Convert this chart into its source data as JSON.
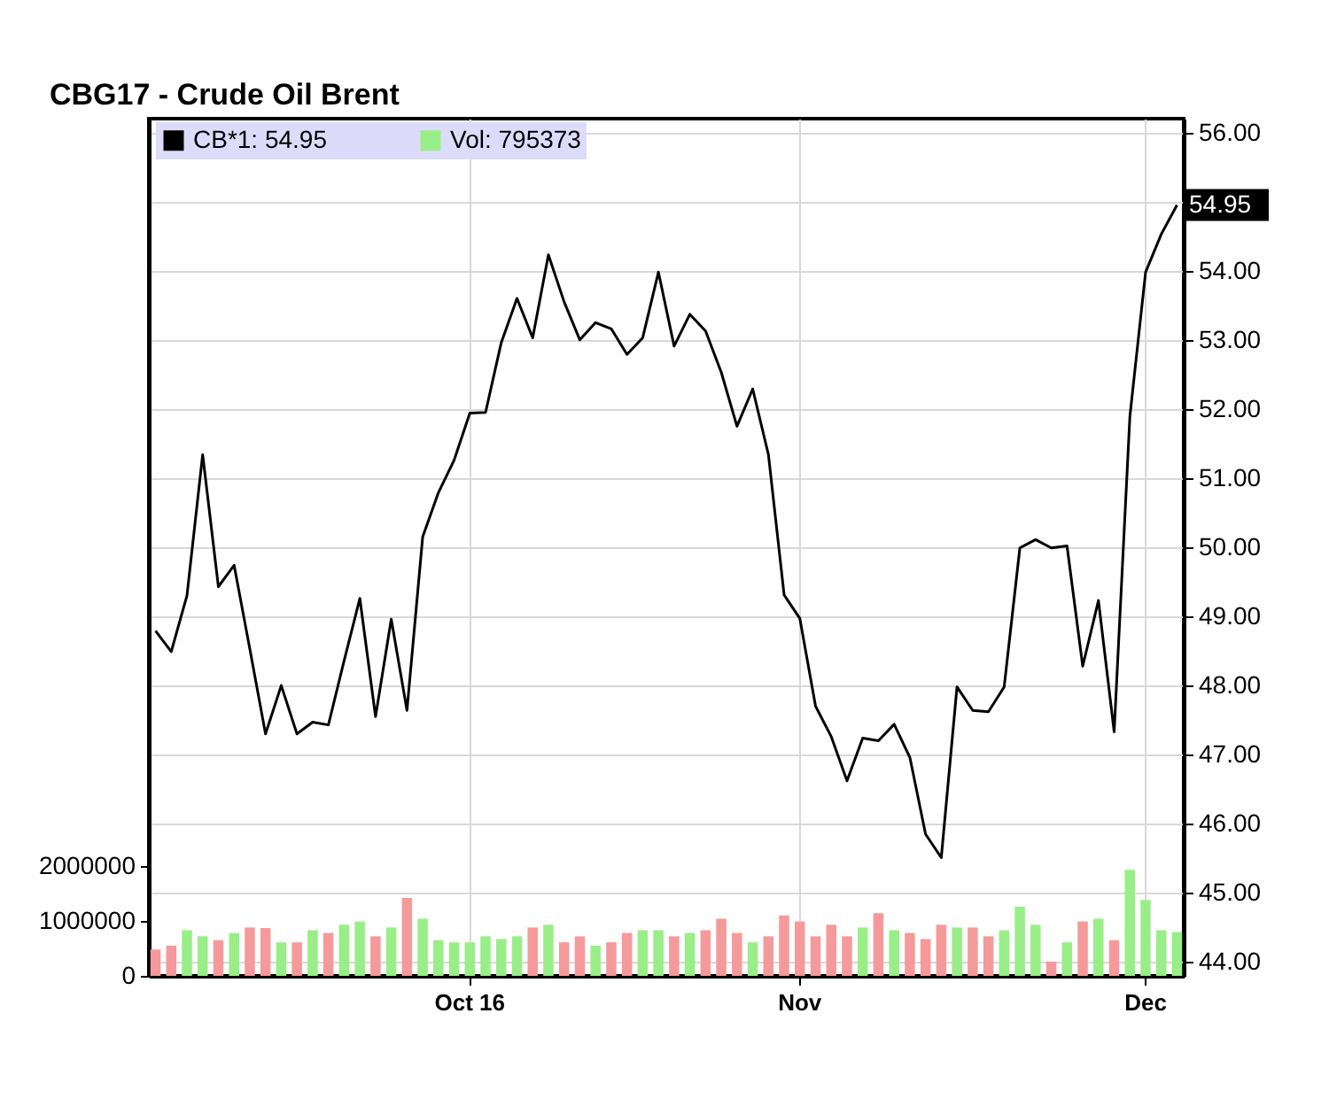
{
  "chart_data": {
    "type": "line",
    "title": "CBG17 - Crude Oil Brent",
    "categories": [
      null,
      null,
      null,
      null,
      null,
      null,
      null,
      null,
      null,
      null,
      null,
      null,
      null,
      null,
      null,
      null,
      null,
      null,
      null,
      null,
      "Oct 16",
      null,
      null,
      null,
      null,
      null,
      null,
      null,
      null,
      null,
      null,
      null,
      null,
      null,
      null,
      null,
      null,
      null,
      null,
      null,
      null,
      "Nov",
      null,
      null,
      null,
      null,
      null,
      null,
      null,
      null,
      null,
      null,
      null,
      null,
      null,
      null,
      null,
      null,
      null,
      null,
      null,
      null,
      null,
      "Dec",
      null,
      null
    ],
    "series": [
      {
        "name": "CB*1: 54.95",
        "color": "#000000",
        "values": [
          48.79,
          48.49,
          49.3,
          51.34,
          49.43,
          49.74,
          48.53,
          47.3,
          48.0,
          47.3,
          47.47,
          47.43,
          48.36,
          49.26,
          47.55,
          48.96,
          47.64,
          50.15,
          50.79,
          51.26,
          51.94,
          51.95,
          52.96,
          53.6,
          53.03,
          54.23,
          53.55,
          53.0,
          53.25,
          53.16,
          52.79,
          53.03,
          53.98,
          52.91,
          53.37,
          53.13,
          52.53,
          51.75,
          52.29,
          51.34,
          49.31,
          48.97,
          47.7,
          47.26,
          46.62,
          47.24,
          47.2,
          47.44,
          46.96,
          45.85,
          45.51,
          47.98,
          47.64,
          47.62,
          47.98,
          49.99,
          50.11,
          49.99,
          50.02,
          48.28,
          49.23,
          47.33,
          51.89,
          53.98,
          54.53,
          54.95
        ]
      },
      {
        "name": "Vol: 795373",
        "type": "bar",
        "axis": "y2",
        "color": "#99ee88",
        "colors": [
          "#f59a9a",
          "#f59a9a",
          "#99ee88",
          "#99ee88",
          "#f59a9a",
          "#99ee88",
          "#f59a9a",
          "#f59a9a",
          "#99ee88",
          "#f59a9a",
          "#99ee88",
          "#f59a9a",
          "#99ee88",
          "#99ee88",
          "#f59a9a",
          "#99ee88",
          "#f59a9a",
          "#99ee88",
          "#99ee88",
          "#99ee88",
          "#99ee88",
          "#99ee88",
          "#99ee88",
          "#99ee88",
          "#f59a9a",
          "#99ee88",
          "#f59a9a",
          "#f59a9a",
          "#99ee88",
          "#f59a9a",
          "#f59a9a",
          "#99ee88",
          "#99ee88",
          "#f59a9a",
          "#99ee88",
          "#f59a9a",
          "#f59a9a",
          "#f59a9a",
          "#99ee88",
          "#f59a9a",
          "#f59a9a",
          "#f59a9a",
          "#f59a9a",
          "#f59a9a",
          "#f59a9a",
          "#99ee88",
          "#f59a9a",
          "#99ee88",
          "#f59a9a",
          "#f59a9a",
          "#f59a9a",
          "#99ee88",
          "#f59a9a",
          "#f59a9a",
          "#99ee88",
          "#99ee88",
          "#99ee88",
          "#f59a9a",
          "#99ee88",
          "#f59a9a",
          "#99ee88",
          "#f59a9a",
          "#99ee88",
          "#99ee88",
          "#99ee88",
          "#99ee88"
        ],
        "values": [
          480000,
          550000,
          830000,
          720000,
          650000,
          780000,
          880000,
          870000,
          610000,
          610000,
          830000,
          780000,
          930000,
          990000,
          720000,
          880000,
          1420000,
          1040000,
          650000,
          610000,
          610000,
          720000,
          670000,
          720000,
          880000,
          930000,
          610000,
          720000,
          550000,
          610000,
          780000,
          830000,
          830000,
          720000,
          780000,
          830000,
          1040000,
          780000,
          610000,
          720000,
          1100000,
          990000,
          720000,
          930000,
          720000,
          880000,
          1140000,
          830000,
          780000,
          670000,
          930000,
          880000,
          880000,
          720000,
          830000,
          1260000,
          930000,
          260000,
          610000,
          990000,
          1040000,
          650000,
          1930000,
          1380000,
          830000,
          795373
        ]
      }
    ],
    "ylim": [
      43.8,
      56.2
    ],
    "yticks": [
      {
        "value": 44,
        "label": "44.00"
      },
      {
        "value": 45,
        "label": "45.00"
      },
      {
        "value": 46,
        "label": "46.00"
      },
      {
        "value": 47,
        "label": "47.00"
      },
      {
        "value": 48,
        "label": "48.00"
      },
      {
        "value": 49,
        "label": "49.00"
      },
      {
        "value": 50,
        "label": "50.00"
      },
      {
        "value": 51,
        "label": "51.00"
      },
      {
        "value": 52,
        "label": "52.00"
      },
      {
        "value": 53,
        "label": "53.00"
      },
      {
        "value": 54,
        "label": "54.00"
      },
      {
        "value": 55,
        "label": null
      },
      {
        "value": 56,
        "label": "56.00"
      }
    ],
    "y2lim": [
      0,
      15600000
    ],
    "y2ticks": [
      0,
      1000000,
      2000000
    ],
    "annotations": [
      "54.95"
    ],
    "grid": true,
    "legend": "top left"
  }
}
